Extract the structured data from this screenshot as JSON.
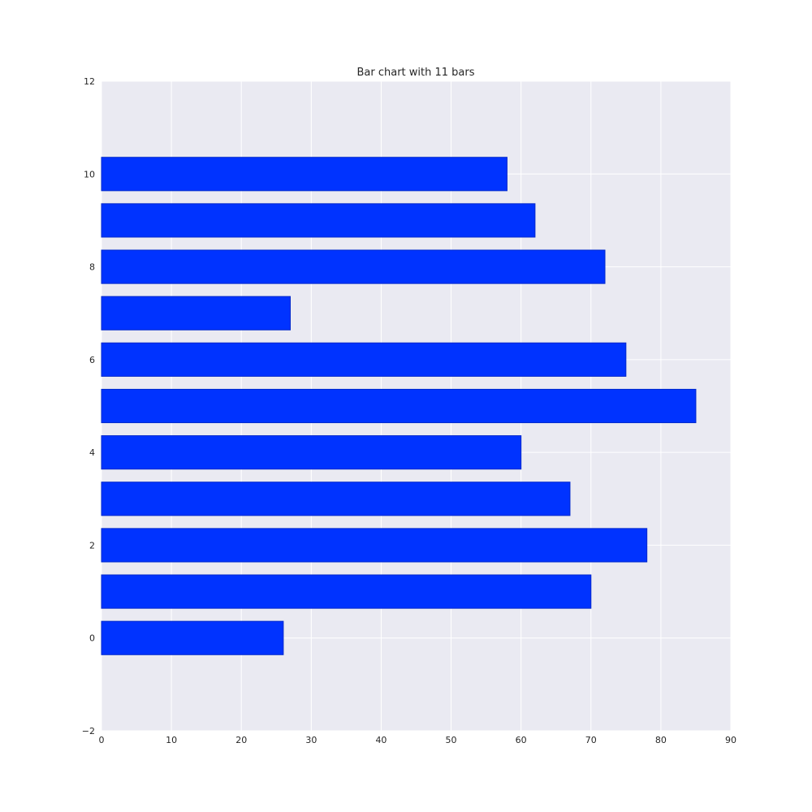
{
  "chart_data": {
    "type": "bar",
    "orientation": "horizontal",
    "title": "Bar chart with 11 bars",
    "xlabel": "",
    "ylabel": "",
    "categories": [
      0,
      1,
      2,
      3,
      4,
      5,
      6,
      7,
      8,
      9,
      10
    ],
    "values": [
      26,
      70,
      78,
      67,
      60,
      85,
      75,
      27,
      72,
      62,
      58
    ],
    "xlim": [
      0,
      90
    ],
    "ylim": [
      -2,
      12
    ],
    "x_ticks": [
      "0",
      "10",
      "20",
      "30",
      "40",
      "50",
      "60",
      "70",
      "80",
      "90"
    ],
    "y_ticks": [
      "−2",
      "0",
      "2",
      "4",
      "6",
      "8",
      "10",
      "12"
    ],
    "grid": true,
    "legend": "none",
    "colors": {
      "bar_fill": "#0033ff",
      "bar_edge": "#0028cc",
      "plot_background": "#eaeaf2",
      "grid": "#ffffff"
    }
  }
}
